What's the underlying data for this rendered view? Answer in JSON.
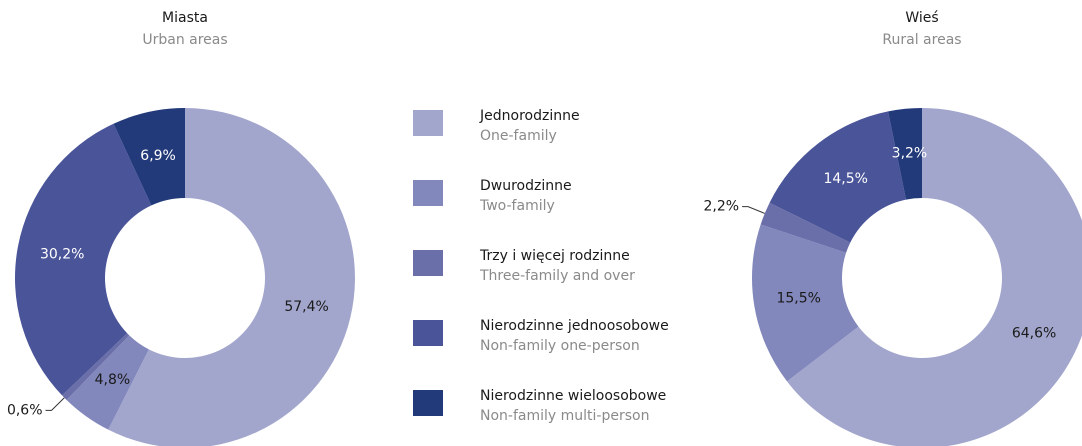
{
  "chart_data": [
    {
      "type": "pie",
      "title": "Miasta",
      "subtitle": "Urban areas",
      "values": [
        57.4,
        4.8,
        0.6,
        30.2,
        6.9
      ],
      "value_labels": [
        "57,4%",
        "4,8%",
        "0,6%",
        "30,2%",
        "6,9%"
      ]
    },
    {
      "type": "pie",
      "title": "Wieś",
      "subtitle": "Rural areas",
      "values": [
        64.6,
        15.5,
        2.2,
        14.5,
        3.2
      ],
      "value_labels": [
        "64,6%",
        "15,5%",
        "2,2%",
        "14,5%",
        "3,2%"
      ]
    }
  ],
  "legend": {
    "items": [
      {
        "label": "Jednorodzinne",
        "sublabel": "One-family",
        "color": "#a3a6cc"
      },
      {
        "label": "Dwurodzinne",
        "sublabel": "Two-family",
        "color": "#8287bc"
      },
      {
        "label": "Trzy i więcej rodzinne",
        "sublabel": "Three-family and over",
        "color": "#6b6fa9"
      },
      {
        "label": "Nierodzinne jednoosobowe",
        "sublabel": "Non-family one-person",
        "color": "#4a5499"
      },
      {
        "label": "Nierodzinne wieloosobowe",
        "sublabel": "Non-family multi-person",
        "color": "#223a7a"
      }
    ]
  }
}
